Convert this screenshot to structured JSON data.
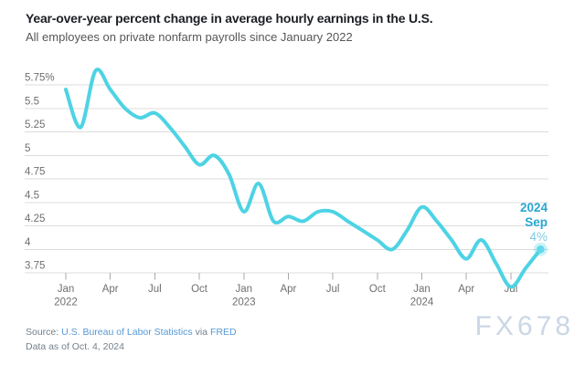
{
  "header": {
    "title": "Year-over-year percent change in average hourly earnings in the U.S.",
    "subtitle": "All employees on private nonfarm payrolls since January 2022"
  },
  "chart_data": {
    "type": "line",
    "title": "Year-over-year percent change in average hourly earnings in the U.S.",
    "subtitle": "All employees on private nonfarm payrolls since January 2022",
    "series_name": "YoY percent change in average hourly earnings",
    "unit": "%",
    "grid": "horizontal",
    "legend": "none",
    "ylim": [
      3.75,
      5.75
    ],
    "x": [
      "Jan 2022",
      "Feb 2022",
      "Mar 2022",
      "Apr 2022",
      "May 2022",
      "Jun 2022",
      "Jul 2022",
      "Aug 2022",
      "Sep 2022",
      "Oct 2022",
      "Nov 2022",
      "Dec 2022",
      "Jan 2023",
      "Feb 2023",
      "Mar 2023",
      "Apr 2023",
      "May 2023",
      "Jun 2023",
      "Jul 2023",
      "Aug 2023",
      "Sep 2023",
      "Oct 2023",
      "Nov 2023",
      "Dec 2023",
      "Jan 2024",
      "Feb 2024",
      "Mar 2024",
      "Apr 2024",
      "May 2024",
      "Jun 2024",
      "Jul 2024",
      "Aug 2024",
      "Sep 2024"
    ],
    "values": [
      5.7,
      5.3,
      5.9,
      5.7,
      5.5,
      5.4,
      5.45,
      5.3,
      5.1,
      4.9,
      5.0,
      4.8,
      4.4,
      4.7,
      4.3,
      4.35,
      4.3,
      4.4,
      4.4,
      4.3,
      4.2,
      4.1,
      4.0,
      4.2,
      4.45,
      4.3,
      4.1,
      3.9,
      4.1,
      3.85,
      3.6,
      3.8,
      4.0
    ],
    "y_axis": [
      {
        "label": "5.75%",
        "value": 5.75
      },
      {
        "label": "5.5",
        "value": 5.5
      },
      {
        "label": "5.25",
        "value": 5.25
      },
      {
        "label": "5",
        "value": 5.0
      },
      {
        "label": "4.75",
        "value": 4.75
      },
      {
        "label": "4.5",
        "value": 4.5
      },
      {
        "label": "4.25",
        "value": 4.25
      },
      {
        "label": "4",
        "value": 4.0
      },
      {
        "label": "3.75",
        "value": 3.75
      }
    ],
    "x_axis": [
      {
        "month_index": 0,
        "label": "Jan",
        "year": "2022"
      },
      {
        "month_index": 3,
        "label": "Apr"
      },
      {
        "month_index": 6,
        "label": "Jul"
      },
      {
        "month_index": 9,
        "label": "Oct"
      },
      {
        "month_index": 12,
        "label": "Jan",
        "year": "2023"
      },
      {
        "month_index": 15,
        "label": "Apr"
      },
      {
        "month_index": 18,
        "label": "Jul"
      },
      {
        "month_index": 21,
        "label": "Oct"
      },
      {
        "month_index": 24,
        "label": "Jan",
        "year": "2024"
      },
      {
        "month_index": 27,
        "label": "Apr"
      },
      {
        "month_index": 30,
        "label": "Jul"
      }
    ],
    "annotation": {
      "year": "2024",
      "month": "Sep",
      "value": "4%"
    },
    "latest_point": {
      "date": "Sep 2024",
      "value": 4.0
    }
  },
  "footer": {
    "source_prefix": "Source: ",
    "source_link_bls": "U.S. Bureau of Labor Statistics",
    "source_connector": " via ",
    "source_link_fred": "FRED",
    "data_as_of": "Data as of Oct. 4, 2024"
  },
  "watermark": {
    "text": "FX678"
  },
  "colors": {
    "line": "#4DD3E4",
    "dot": "#63D8E9",
    "annotation_bold": "#28A6D2",
    "annotation_value": "#7FCBE0",
    "link": "#5599D6",
    "watermark": "#CBD7E5"
  }
}
